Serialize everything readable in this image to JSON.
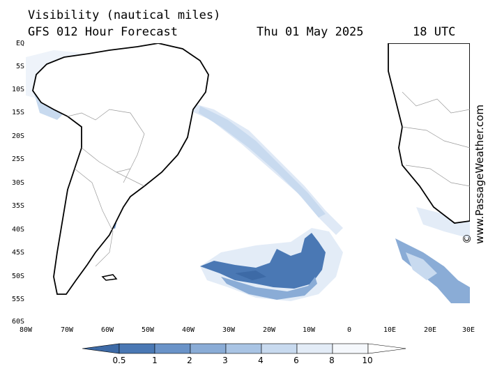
{
  "header": {
    "title": "Visibility (nautical miles)",
    "subtitle": "GFS 012 Hour Forecast",
    "date": "Thu 01 May 2025",
    "time": "18 UTC"
  },
  "copyright": "© www.PassageWeather.com",
  "map": {
    "lat_labels": [
      "EQ",
      "5S",
      "10S",
      "15S",
      "20S",
      "25S",
      "30S",
      "35S",
      "40S",
      "45S",
      "50S",
      "55S",
      "60S"
    ],
    "lon_labels": [
      "80W",
      "70W",
      "60W",
      "50W",
      "40W",
      "30W",
      "20W",
      "10W",
      "0",
      "10E",
      "20E",
      "30E"
    ],
    "colors": {
      "ocean": "#ffffff",
      "land": "#ffffff",
      "coast": "#000000",
      "borders": "#9a9a9a"
    }
  },
  "legend": {
    "labels": [
      "0.5",
      "1",
      "2",
      "3",
      "4",
      "6",
      "8",
      "10"
    ],
    "colors": [
      "#3d6aa6",
      "#4a78b4",
      "#6a93c8",
      "#8aacd6",
      "#a9c4e4",
      "#c8daef",
      "#e3ecf7",
      "#f5f8fc",
      "#ffffff"
    ]
  }
}
